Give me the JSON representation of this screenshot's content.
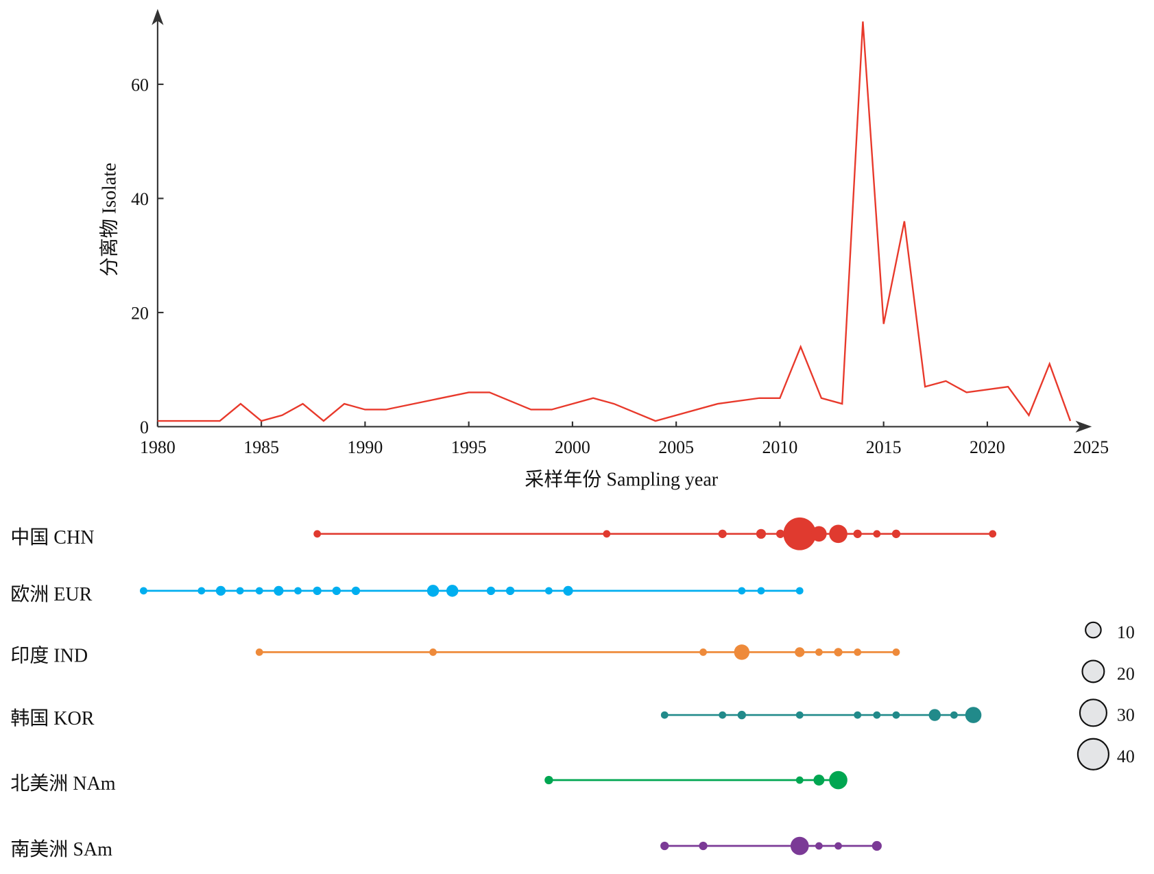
{
  "chart_data": [
    {
      "type": "line",
      "title": "",
      "xlabel": "采样年份 Sampling year",
      "ylabel": "分离物 Isolate",
      "xlim": [
        1980,
        2025
      ],
      "ylim": [
        0,
        70
      ],
      "xticks": [
        1980,
        1985,
        1990,
        1995,
        2000,
        2005,
        2010,
        2015,
        2020,
        2025
      ],
      "yticks": [
        0,
        20,
        40,
        60
      ],
      "grid": false,
      "series": [
        {
          "name": "Isolates",
          "color": "#e8392b",
          "x": [
            1980,
            1981,
            1982,
            1983,
            1984,
            1985,
            1986,
            1987,
            1988,
            1989,
            1990,
            1991,
            1995,
            1996,
            1998,
            1999,
            2001,
            2002,
            2004,
            2007,
            2009,
            2010,
            2011,
            2012,
            2013,
            2014,
            2015,
            2016,
            2017,
            2018,
            2019,
            2021,
            2022,
            2023,
            2024
          ],
          "y": [
            1,
            1,
            1,
            1,
            4,
            1,
            2,
            4,
            1,
            4,
            3,
            3,
            6,
            6,
            3,
            3,
            5,
            4,
            1,
            4,
            5,
            5,
            14,
            5,
            4,
            71,
            18,
            36,
            7,
            8,
            6,
            7,
            2,
            11,
            1
          ]
        }
      ]
    },
    {
      "type": "scatter",
      "title": "",
      "xlim": [
        1980,
        2024
      ],
      "size_legend": {
        "values": [
          10,
          20,
          30,
          40
        ],
        "placement": "right"
      },
      "series": [
        {
          "name": "中国 CHN",
          "color": "#e03a2f",
          "x": [
            1989,
            2004,
            2010,
            2012,
            2013,
            2014,
            2015,
            2016,
            2017,
            2018,
            2019,
            2024
          ],
          "size": [
            1,
            1,
            3,
            4,
            3,
            45,
            10,
            14,
            3,
            2,
            3,
            1
          ]
        },
        {
          "name": "欧洲 EUR",
          "color": "#00aeef",
          "x": [
            1980,
            1983,
            1984,
            1985,
            1986,
            1987,
            1988,
            1989,
            1990,
            1991,
            1995,
            1996,
            1998,
            1999,
            2001,
            2002,
            2011,
            2012,
            2014
          ],
          "size": [
            1,
            1,
            4,
            1,
            1,
            4,
            1,
            3,
            3,
            3,
            6,
            6,
            3,
            3,
            2,
            4,
            1,
            1,
            1
          ]
        },
        {
          "name": "印度 IND",
          "color": "#ee8a3a",
          "x": [
            1986,
            1995,
            2009,
            2011,
            2014,
            2015,
            2016,
            2017,
            2019
          ],
          "size": [
            1,
            1,
            1,
            10,
            4,
            1,
            3,
            1,
            1
          ]
        },
        {
          "name": "韩国 KOR",
          "color": "#218a8a",
          "x": [
            2007,
            2010,
            2011,
            2014,
            2017,
            2018,
            2019,
            2021,
            2022,
            2023
          ],
          "size": [
            1,
            2,
            3,
            2,
            2,
            1,
            2,
            6,
            2,
            11
          ]
        },
        {
          "name": "北美洲 NAm",
          "color": "#00a651",
          "x": [
            2001,
            2014,
            2015,
            2016
          ],
          "size": [
            3,
            1,
            5,
            14
          ]
        },
        {
          "name": "南美洲 SAm",
          "color": "#7b3a96",
          "x": [
            2007,
            2009,
            2014,
            2015,
            2016,
            2018
          ],
          "size": [
            3,
            3,
            14,
            2,
            1,
            4
          ]
        }
      ]
    }
  ]
}
